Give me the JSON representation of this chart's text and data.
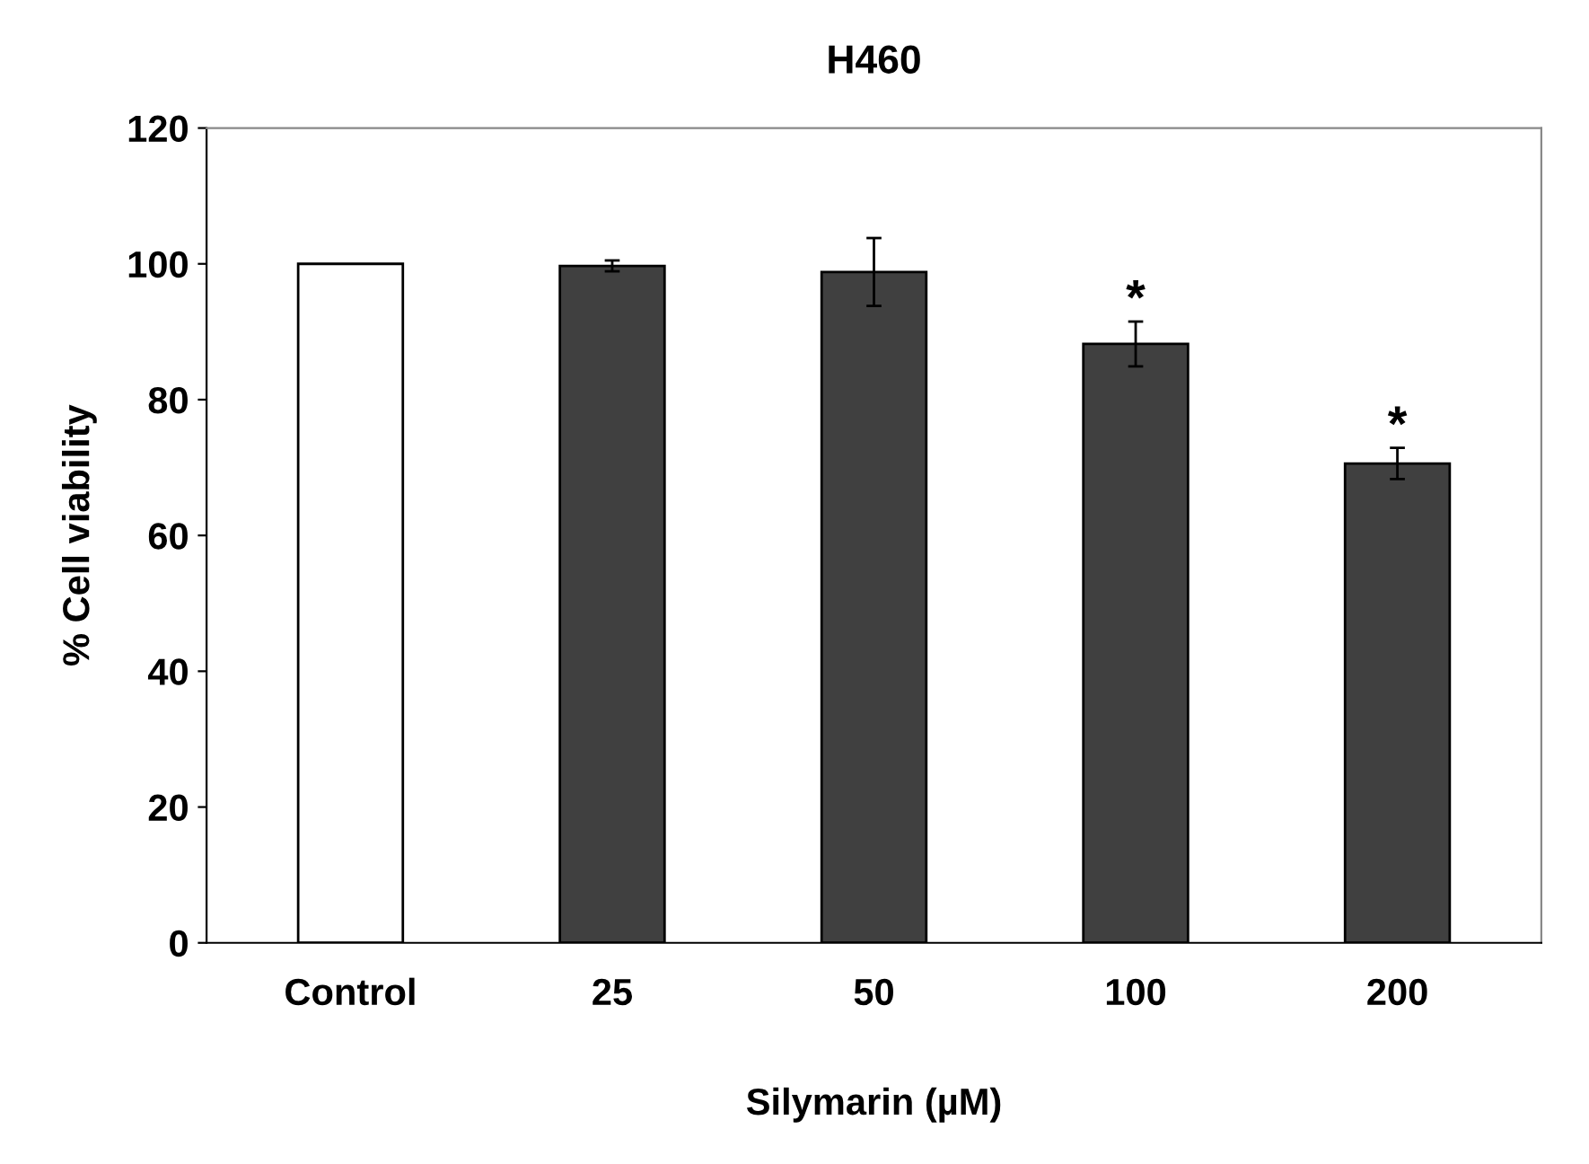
{
  "chart_data": {
    "type": "bar",
    "title": "H460",
    "xlabel": "Silymarin (µM)",
    "ylabel": "% Cell viability",
    "categories": [
      "Control",
      "25",
      "50",
      "100",
      "200"
    ],
    "values": [
      100,
      99.7,
      98.8,
      88.2,
      70.6
    ],
    "errors": [
      null,
      0.8,
      5,
      3.3,
      2.3
    ],
    "colors": [
      "#ffffff",
      "#404040",
      "#404040",
      "#404040",
      "#404040"
    ],
    "ylim": [
      0,
      120
    ],
    "yticks": [
      0,
      20,
      40,
      60,
      80,
      100,
      120
    ],
    "grid": false,
    "legend": false,
    "annotations": [
      {
        "text": "*",
        "x": "100",
        "y": 91.5
      },
      {
        "text": "*",
        "x": "200",
        "y": 72.9
      }
    ]
  }
}
